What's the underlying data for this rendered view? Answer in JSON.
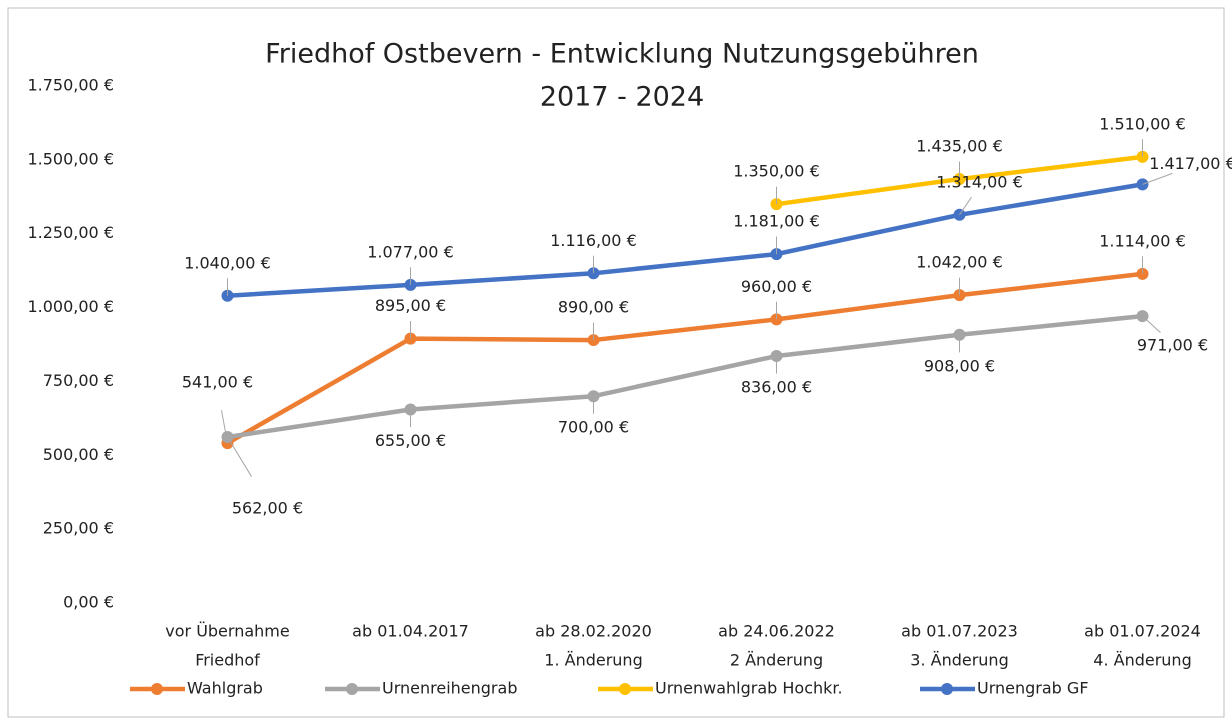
{
  "chart_data": {
    "type": "line",
    "title": [
      "Friedhof Ostbevern - Entwicklung Nutzungsgebühren",
      "2017 - 2024"
    ],
    "categories": [
      [
        "vor Übernahme",
        "Friedhof"
      ],
      [
        "ab 01.04.2017"
      ],
      [
        "ab 28.02.2020",
        "1. Änderung"
      ],
      [
        "ab 24.06.2022",
        "2 Änderung"
      ],
      [
        "ab 01.07.2023",
        "3. Änderung"
      ],
      [
        "ab 01.07.2024",
        "4. Änderung"
      ]
    ],
    "series": [
      {
        "name": "Wahlgrab",
        "color": "#ED7D31",
        "values": [
          541,
          895,
          890,
          960,
          1042,
          1114
        ],
        "value_labels": [
          "541,00 €",
          "895,00 €",
          "890,00 €",
          "960,00 €",
          "1.042,00 €",
          "1.114,00 €"
        ]
      },
      {
        "name": "Urnenreihengrab",
        "color": "#A5A5A5",
        "values": [
          562,
          655,
          700,
          836,
          908,
          971
        ],
        "value_labels": [
          "562,00 €",
          "655,00 €",
          "700,00 €",
          "836,00 €",
          "908,00 €",
          "971,00 €"
        ]
      },
      {
        "name": "Urnenwahlgrab Hochkr.",
        "color": "#FFC000",
        "values": [
          null,
          null,
          null,
          1350,
          1435,
          1510
        ],
        "value_labels": [
          null,
          null,
          null,
          "1.350,00 €",
          "1.435,00 €",
          "1.510,00 €"
        ]
      },
      {
        "name": "Urnengrab GF",
        "color": "#4472C4",
        "values": [
          1040,
          1077,
          1116,
          1181,
          1314,
          1417
        ],
        "value_labels": [
          "1.040,00 €",
          "1.077,00 €",
          "1.116,00 €",
          "1.181,00 €",
          "1.314,00 €",
          "1.417,00 €"
        ]
      }
    ],
    "ylim": [
      0,
      1750
    ],
    "yticks": [
      {
        "value": 0,
        "label": "0,00 €"
      },
      {
        "value": 250,
        "label": "250,00 €"
      },
      {
        "value": 500,
        "label": "500,00 €"
      },
      {
        "value": 750,
        "label": "750,00 €"
      },
      {
        "value": 1000,
        "label": "1.000,00 €"
      },
      {
        "value": 1250,
        "label": "1.250,00 €"
      },
      {
        "value": 1500,
        "label": "1.500,00 €"
      },
      {
        "value": 1750,
        "label": "1.750,00 €"
      }
    ],
    "grid": false,
    "legend": "bottom"
  }
}
